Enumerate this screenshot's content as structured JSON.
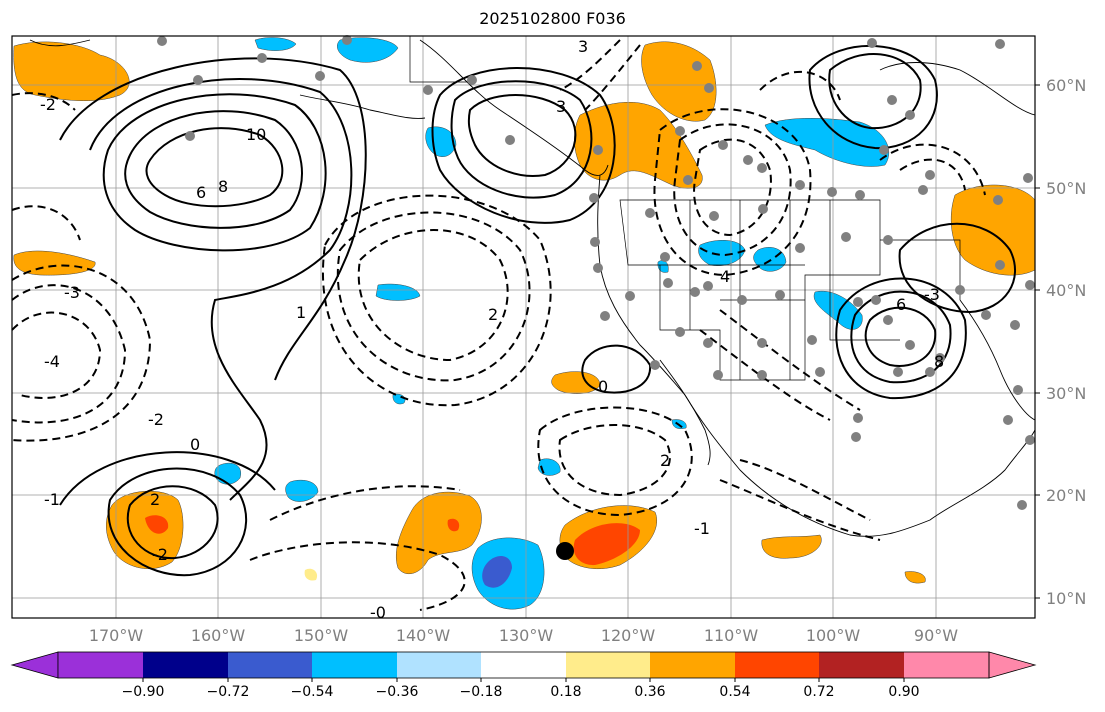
{
  "title": "2025102800 F036",
  "lat_labels": [
    "60°N",
    "50°N",
    "40°N",
    "30°N",
    "20°N",
    "10°N"
  ],
  "lon_labels": [
    "170°W",
    "160°W",
    "150°W",
    "140°W",
    "130°W",
    "120°W",
    "110°W",
    "100°W",
    "90°W"
  ],
  "contour_labels": [
    "10",
    "8",
    "6",
    "3",
    "2",
    "1",
    "0",
    "-1",
    "-2",
    "-3",
    "-4",
    "2",
    "4",
    "6",
    "8",
    "0",
    "-2",
    "-1",
    "3",
    "2",
    "-2",
    "-3",
    "-0"
  ],
  "colorbar": {
    "tick_labels": [
      "−0.90",
      "−0.72",
      "−0.54",
      "−0.36",
      "−0.18",
      "0.18",
      "0.36",
      "0.54",
      "0.72",
      "0.90"
    ],
    "colors": [
      "#9b30d9",
      "#00008b",
      "#3a5bcf",
      "#00bfff",
      "#b0e2ff",
      "#ffffff",
      "#ffec8b",
      "#ffa500",
      "#ff4500",
      "#b22222",
      "#ff88aa"
    ]
  }
}
